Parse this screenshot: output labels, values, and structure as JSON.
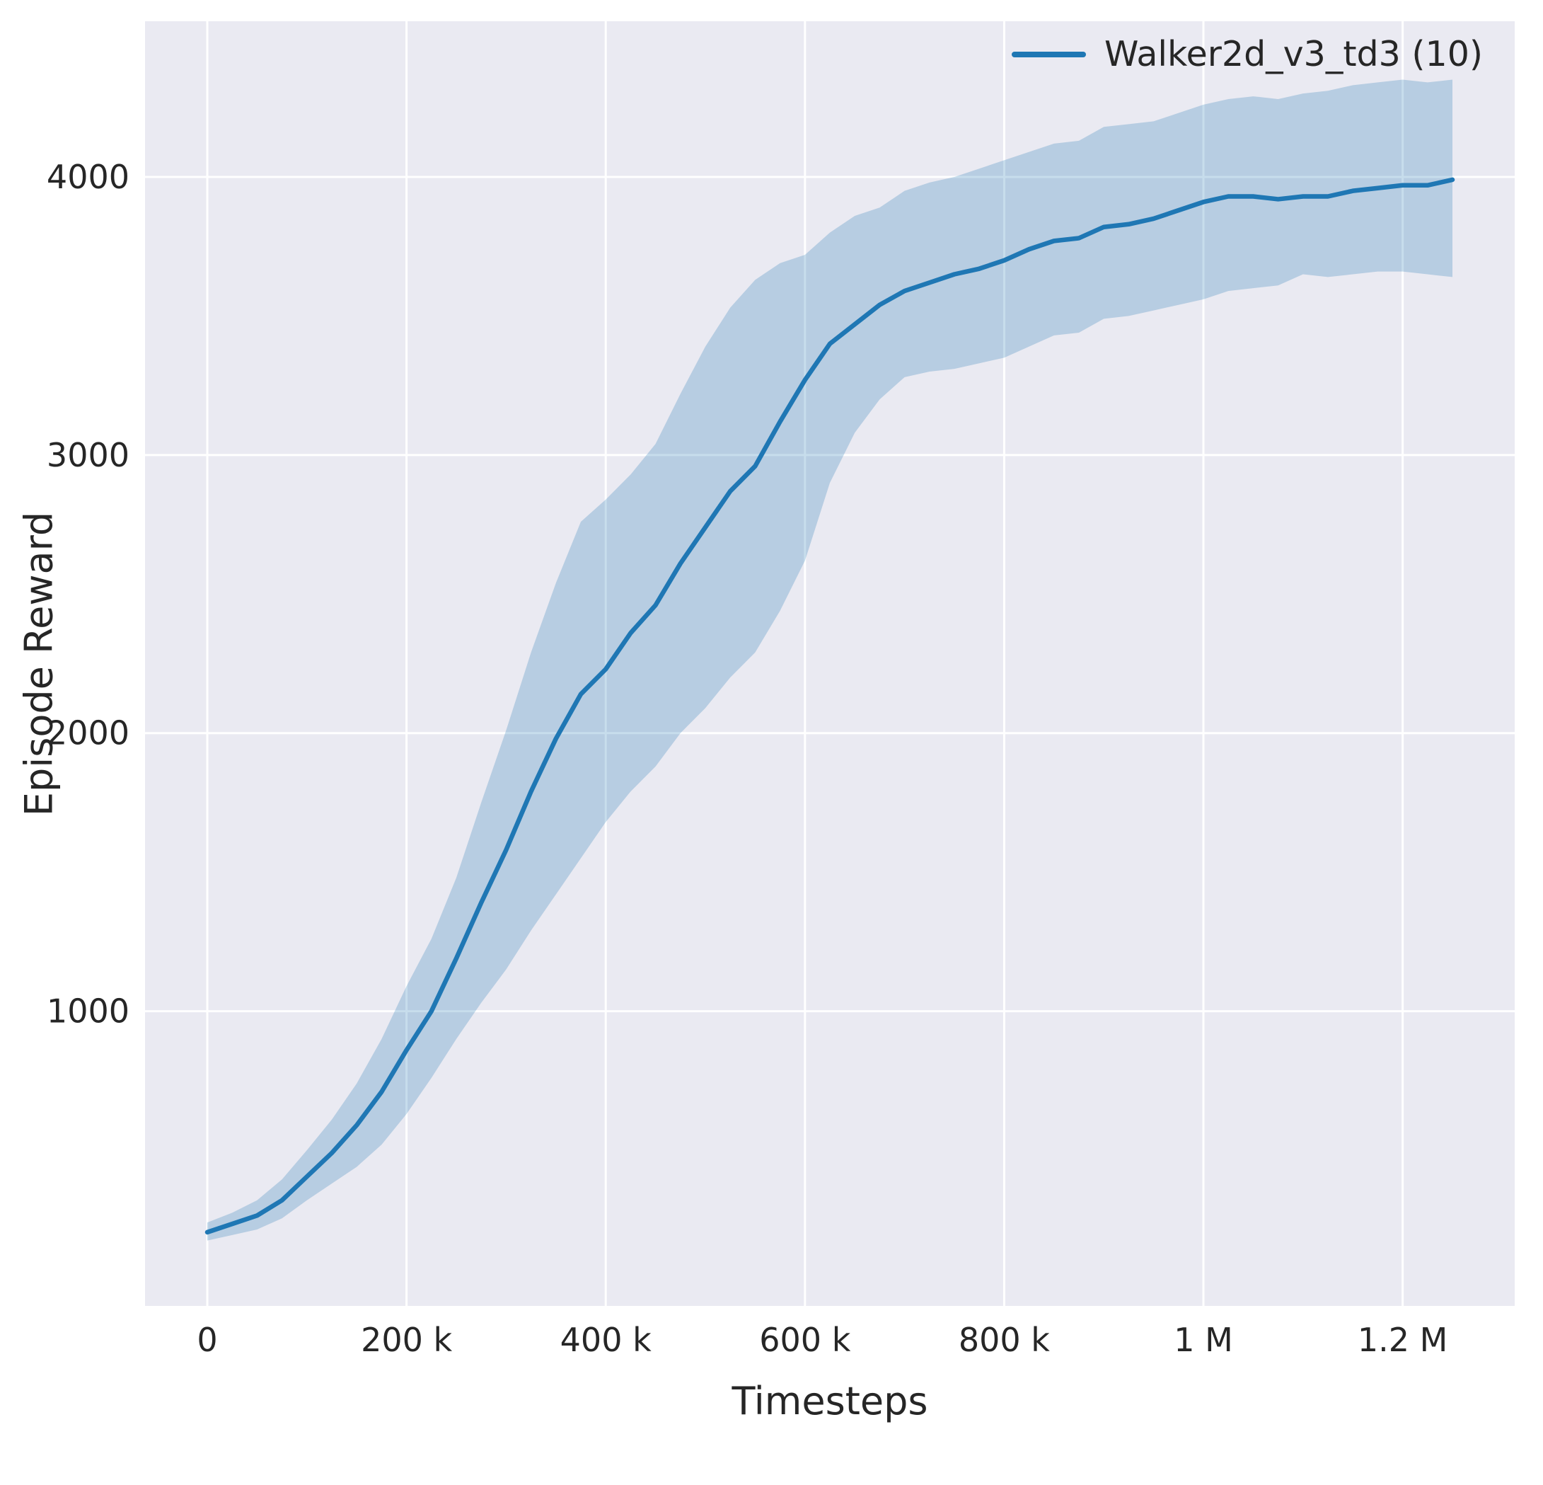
{
  "chart_data": {
    "type": "line",
    "title": "",
    "xlabel": "Timesteps",
    "ylabel": "Episode Reward",
    "xlim": [
      -62500,
      1312500
    ],
    "ylim": [
      -60,
      4560
    ],
    "grid": true,
    "legend_position": "upper right",
    "colors": {
      "line": "#1f77b4",
      "band": "#1f77b4",
      "band_opacity": 0.25,
      "plot_bg": "#eaeaf2",
      "grid": "#ffffff",
      "text": "#262626"
    },
    "xticks": {
      "values": [
        0,
        200000,
        400000,
        600000,
        800000,
        1000000,
        1200000
      ],
      "labels": [
        "0",
        "200 k",
        "400 k",
        "600 k",
        "800 k",
        "1 M",
        "1.2 M"
      ]
    },
    "yticks": {
      "values": [
        1000,
        2000,
        3000,
        4000
      ],
      "labels": [
        "1000",
        "2000",
        "3000",
        "4000"
      ]
    },
    "series": [
      {
        "name": "Walker2d_v3_td3 (10)",
        "color": "#1f77b4",
        "x": [
          0,
          25000,
          50000,
          75000,
          100000,
          125000,
          150000,
          175000,
          200000,
          225000,
          250000,
          275000,
          300000,
          325000,
          350000,
          375000,
          400000,
          425000,
          450000,
          475000,
          500000,
          525000,
          550000,
          575000,
          600000,
          625000,
          650000,
          675000,
          700000,
          725000,
          750000,
          775000,
          800000,
          825000,
          850000,
          875000,
          900000,
          925000,
          950000,
          975000,
          1000000,
          1025000,
          1050000,
          1075000,
          1100000,
          1125000,
          1150000,
          1175000,
          1200000,
          1225000,
          1250000
        ],
        "mean": [
          205,
          235,
          265,
          320,
          405,
          490,
          590,
          710,
          860,
          1000,
          1190,
          1390,
          1580,
          1790,
          1980,
          2140,
          2230,
          2360,
          2460,
          2610,
          2740,
          2870,
          2960,
          3120,
          3270,
          3400,
          3470,
          3540,
          3590,
          3620,
          3650,
          3670,
          3700,
          3740,
          3770,
          3780,
          3820,
          3830,
          3850,
          3880,
          3910,
          3930,
          3930,
          3920,
          3930,
          3930,
          3950,
          3960,
          3970,
          3970,
          3990
        ],
        "lower": [
          175,
          195,
          215,
          255,
          320,
          380,
          440,
          520,
          630,
          760,
          900,
          1030,
          1150,
          1290,
          1420,
          1550,
          1680,
          1790,
          1880,
          2000,
          2090,
          2200,
          2290,
          2440,
          2620,
          2900,
          3080,
          3200,
          3280,
          3300,
          3310,
          3330,
          3350,
          3390,
          3430,
          3440,
          3490,
          3500,
          3520,
          3540,
          3560,
          3590,
          3600,
          3610,
          3650,
          3640,
          3650,
          3660,
          3660,
          3650,
          3640
        ],
        "upper": [
          240,
          275,
          320,
          395,
          500,
          610,
          740,
          900,
          1090,
          1260,
          1480,
          1750,
          2010,
          2290,
          2540,
          2760,
          2840,
          2930,
          3040,
          3220,
          3390,
          3530,
          3630,
          3690,
          3720,
          3800,
          3860,
          3890,
          3950,
          3980,
          4000,
          4030,
          4060,
          4090,
          4120,
          4130,
          4180,
          4190,
          4200,
          4230,
          4260,
          4280,
          4290,
          4280,
          4300,
          4310,
          4330,
          4340,
          4350,
          4340,
          4350
        ]
      }
    ]
  }
}
